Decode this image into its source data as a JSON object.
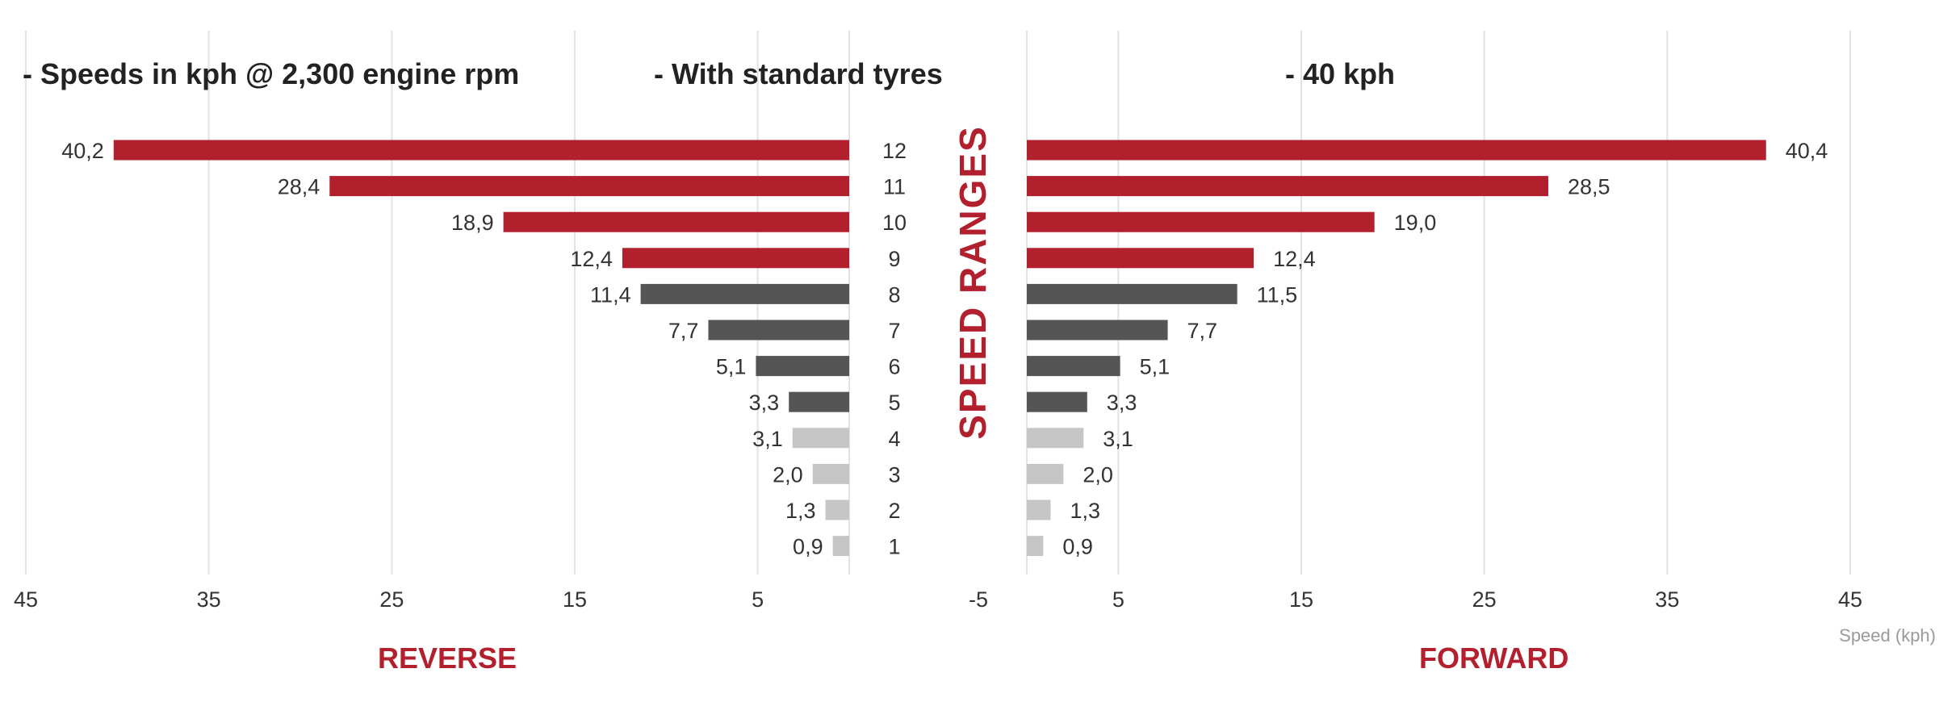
{
  "header": {
    "note_rpm": "- Speeds in kph @ 2,300 engine rpm",
    "note_tyres": "- With standard tyres",
    "note_max": "- 40 kph"
  },
  "center_label": "SPEED RANGES",
  "colors": {
    "high": "#b21f2d",
    "mid": "#555555",
    "low": "#c6c6c6",
    "accent_text": "#b21f2d",
    "grid": "#e2e2e2"
  },
  "chart_data": {
    "type": "bar",
    "orientation": "horizontal-butterfly",
    "categories": [
      "12",
      "11",
      "10",
      "9",
      "8",
      "7",
      "6",
      "5",
      "4",
      "3",
      "2",
      "1"
    ],
    "series": [
      {
        "name": "REVERSE",
        "values": [
          40.2,
          28.4,
          18.9,
          12.4,
          11.4,
          7.7,
          5.1,
          3.3,
          3.1,
          2.0,
          1.3,
          0.9
        ],
        "labels": [
          "40,2",
          "28,4",
          "18,9",
          "12,4",
          "11,4",
          "7,7",
          "5,1",
          "3,3",
          "3,1",
          "2,0",
          "1,3",
          "0,9"
        ]
      },
      {
        "name": "FORWARD",
        "values": [
          40.4,
          28.5,
          19.0,
          12.4,
          11.5,
          7.7,
          5.1,
          3.3,
          3.1,
          2.0,
          1.3,
          0.9
        ],
        "labels": [
          "40,4",
          "28,5",
          "19,0",
          "12,4",
          "11,5",
          "7,7",
          "5,1",
          "3,3",
          "3,1",
          "2,0",
          "1,3",
          "0,9"
        ]
      }
    ],
    "groups": [
      "high",
      "high",
      "high",
      "high",
      "mid",
      "mid",
      "mid",
      "mid",
      "low",
      "low",
      "low",
      "low"
    ],
    "xticks": {
      "left": [
        "45",
        "35",
        "25",
        "15",
        "5"
      ],
      "center": "-5",
      "right": [
        "5",
        "15",
        "25",
        "35",
        "45"
      ]
    },
    "xlim": [
      0,
      45
    ],
    "xlabel": "Speed (kph)",
    "grid": true
  }
}
